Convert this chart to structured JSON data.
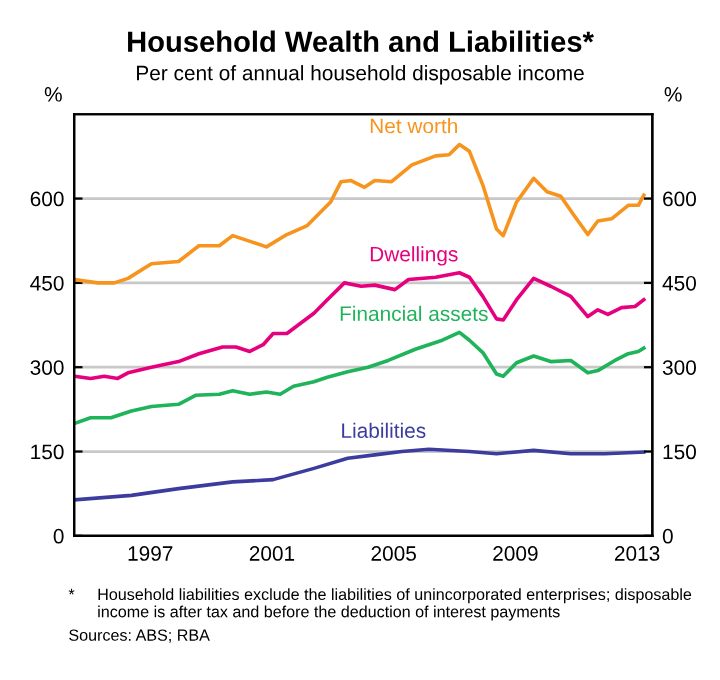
{
  "chart_data": {
    "type": "line",
    "title": "Household Wealth and Liabilities*",
    "subtitle": "Per cent of annual household disposable income",
    "ylabel": "%",
    "y2label": "%",
    "xlim": [
      1995,
      2014
    ],
    "xticks": [
      {
        "value": 1997.5,
        "label": "1997"
      },
      {
        "value": 2001.5,
        "label": "2001"
      },
      {
        "value": 2005.5,
        "label": "2005"
      },
      {
        "value": 2009.5,
        "label": "2009"
      },
      {
        "value": 2013.5,
        "label": "2013"
      }
    ],
    "ylim": [
      0,
      750
    ],
    "yticks": [
      0,
      150,
      300,
      450,
      600
    ],
    "y2lim": [
      0,
      750
    ],
    "y2ticks": [
      0,
      150,
      300,
      450,
      600
    ],
    "grid": "y",
    "legend": false,
    "marker": "none",
    "line_style": "solid",
    "series": [
      {
        "name": "Net worth",
        "color": "#f7941d",
        "x": [
          1995.01,
          1995.77,
          1996.32,
          1996.77,
          1997.54,
          1998.43,
          1999.1,
          1999.77,
          2000.21,
          2000.88,
          2001.32,
          2001.99,
          2002.66,
          2002.88,
          2003.32,
          2003.43,
          2003.77,
          2004.1,
          2004.54,
          2004.88,
          2005.43,
          2006.1,
          2006.88,
          2007.32,
          2007.66,
          2007.99,
          2008.43,
          2008.88,
          2009.1,
          2009.54,
          2010.1,
          2010.54,
          2010.99,
          2011.43,
          2011.88,
          2012.21,
          2012.66,
          2013.21,
          2013.54,
          2013.72
        ],
        "values": [
          456,
          450,
          450,
          458,
          484,
          488,
          516,
          516,
          534,
          522,
          514,
          536,
          552,
          564,
          588,
          594,
          630,
          632,
          620,
          632,
          630,
          660,
          676,
          678,
          696,
          684,
          624,
          546,
          534,
          594,
          636,
          612,
          604,
          570,
          536,
          560,
          564,
          588,
          588,
          606
        ]
      },
      {
        "name": "Dwellings",
        "color": "#e6007e",
        "x": [
          1995.01,
          1995.54,
          1995.99,
          1996.43,
          1996.77,
          1997.54,
          1998.43,
          1999.1,
          1999.88,
          2000.32,
          2000.77,
          2001.21,
          2001.54,
          2001.99,
          2002.88,
          2003.32,
          2003.88,
          2004.43,
          2004.88,
          2005.54,
          2005.99,
          2006.88,
          2007.66,
          2007.99,
          2008.43,
          2008.88,
          2009.1,
          2009.54,
          2010.1,
          2010.66,
          2011.32,
          2011.88,
          2012.21,
          2012.54,
          2012.99,
          2013.43,
          2013.72
        ],
        "values": [
          284,
          280,
          284,
          280,
          290,
          300,
          310,
          324,
          336,
          336,
          328,
          340,
          360,
          360,
          396,
          420,
          450,
          444,
          446,
          438,
          456,
          460,
          468,
          460,
          426,
          386,
          384,
          420,
          458,
          444,
          426,
          390,
          402,
          394,
          406,
          408,
          420
        ]
      },
      {
        "name": "Financial assets",
        "color": "#1fb35a",
        "x": [
          1995.01,
          1995.54,
          1996.21,
          1996.88,
          1997.54,
          1998.43,
          1998.99,
          1999.77,
          2000.21,
          2000.77,
          2001.32,
          2001.77,
          2002.21,
          2002.88,
          2003.32,
          2003.99,
          2004.66,
          2005.32,
          2006.21,
          2007.1,
          2007.66,
          2007.99,
          2008.43,
          2008.88,
          2009.1,
          2009.54,
          2010.1,
          2010.66,
          2011.32,
          2011.88,
          2012.21,
          2012.77,
          2013.21,
          2013.54,
          2013.72
        ],
        "values": [
          200,
          210,
          210,
          222,
          230,
          234,
          250,
          252,
          258,
          252,
          256,
          252,
          266,
          274,
          282,
          292,
          300,
          312,
          332,
          348,
          362,
          348,
          326,
          288,
          284,
          308,
          320,
          310,
          312,
          290,
          294,
          312,
          324,
          328,
          334
        ]
      },
      {
        "name": "Liabilities",
        "color": "#3c3c9e",
        "x": [
          1995.01,
          1996.88,
          1998.43,
          2000.21,
          2001.54,
          2002.88,
          2003.99,
          2004.88,
          2005.77,
          2006.66,
          2007.99,
          2008.88,
          2010.1,
          2011.32,
          2012.43,
          2013.72
        ],
        "values": [
          64,
          72,
          84,
          96,
          100,
          120,
          138,
          144,
          150,
          154,
          150,
          146,
          152,
          146,
          146,
          149
        ]
      }
    ],
    "annotations": [
      "*",
      "Household liabilities exclude the liabilities of unincorporated enterprises; disposable income is after tax and before the deduction of interest payments",
      "Sources: ABS; RBA"
    ]
  }
}
